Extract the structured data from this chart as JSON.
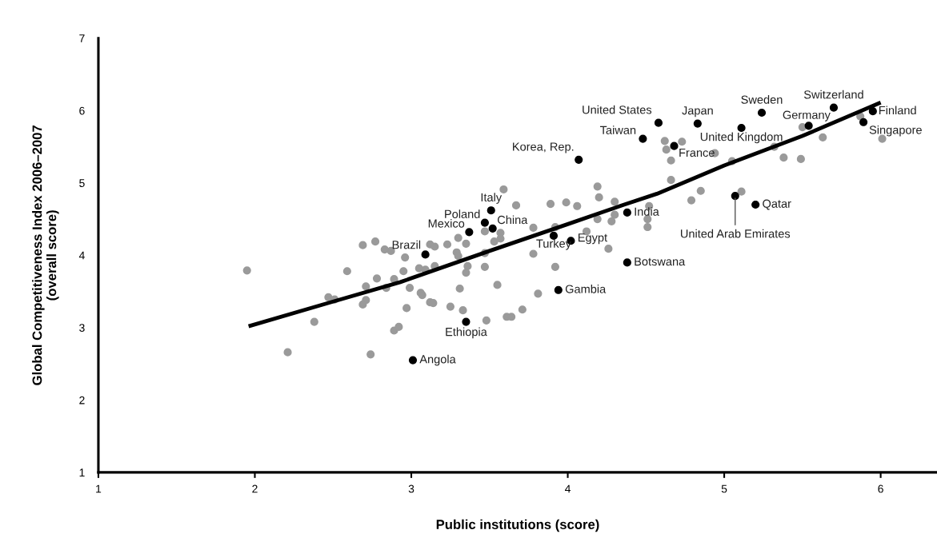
{
  "chart_data": {
    "type": "scatter",
    "xlabel": "Public institutions (score)",
    "ylabel": "Global Competitiveness Index 2006–2007\n(overall score)",
    "xlim": [
      1,
      6.36
    ],
    "ylim": [
      1,
      7
    ],
    "xticks": [
      1,
      2,
      3,
      4,
      5,
      6
    ],
    "yticks": [
      1,
      2,
      3,
      4,
      5,
      6,
      7
    ],
    "grid": false,
    "legend": false,
    "series": [
      {
        "marker": "circle",
        "color": "#9a9a9a",
        "x": [
          1.95,
          2.69,
          2.77,
          2.83,
          2.87,
          2.96,
          3.12,
          3.15,
          3.23,
          3.29,
          3.3,
          3.35,
          2.59,
          2.78,
          2.71,
          2.89,
          2.95,
          3.05,
          3.09,
          3.15,
          3.36,
          3.35,
          3.47,
          2.84,
          2.99,
          3.06,
          3.07,
          3.31,
          2.47,
          2.51,
          2.71,
          2.69,
          3.12,
          3.14,
          2.97,
          3.25,
          3.33,
          2.38,
          2.89,
          2.92,
          3.48,
          2.21,
          2.74,
          3.59,
          3.67,
          3.89,
          3.99,
          4.06,
          4.19,
          4.2,
          4.3,
          4.52,
          3.78,
          3.92,
          4.12,
          4.19,
          4.28,
          4.3,
          4.51,
          4.51,
          3.47,
          3.57,
          3.53,
          3.57,
          3.3,
          3.47,
          3.78,
          4.26,
          3.92,
          3.55,
          3.81,
          3.71,
          3.61,
          3.64,
          4.62,
          4.73,
          4.63,
          4.66,
          4.94,
          5.05,
          4.66,
          4.85,
          4.79,
          5.11,
          5.32,
          5.38,
          5.49,
          5.5,
          5.63,
          5.87,
          6.01
        ],
        "values": [
          3.79,
          4.14,
          4.19,
          4.08,
          4.06,
          3.97,
          4.15,
          4.12,
          4.15,
          4.04,
          3.99,
          4.16,
          3.78,
          3.68,
          3.57,
          3.67,
          3.78,
          3.82,
          3.8,
          3.85,
          3.85,
          3.76,
          3.84,
          3.55,
          3.55,
          3.48,
          3.45,
          3.54,
          3.42,
          3.39,
          3.38,
          3.32,
          3.35,
          3.34,
          3.27,
          3.29,
          3.24,
          3.08,
          2.96,
          3.01,
          3.1,
          2.66,
          2.63,
          4.91,
          4.69,
          4.71,
          4.73,
          4.68,
          4.95,
          4.8,
          4.74,
          4.68,
          4.38,
          4.39,
          4.33,
          4.5,
          4.47,
          4.56,
          4.5,
          4.39,
          4.33,
          4.31,
          4.19,
          4.23,
          4.24,
          4.03,
          4.02,
          4.09,
          3.84,
          3.59,
          3.47,
          3.25,
          3.15,
          3.15,
          5.58,
          5.57,
          5.46,
          5.31,
          5.41,
          5.3,
          5.04,
          4.89,
          4.76,
          4.88,
          5.5,
          5.35,
          5.33,
          5.77,
          5.63,
          5.92,
          5.61
        ]
      },
      {
        "marker": "circle",
        "color": "#000000",
        "x": [
          3.01,
          3.35,
          3.94,
          3.09,
          3.37,
          3.47,
          3.51,
          3.52,
          3.91,
          4.02,
          4.38,
          4.38,
          4.07,
          4.48,
          4.58,
          4.83,
          4.68,
          5.11,
          5.24,
          5.54,
          5.7,
          5.89,
          5.95,
          5.07,
          5.2
        ],
        "values": [
          2.55,
          3.08,
          3.52,
          4.01,
          4.32,
          4.45,
          4.62,
          4.37,
          4.27,
          4.2,
          3.9,
          4.59,
          5.32,
          5.61,
          5.83,
          5.82,
          5.51,
          5.76,
          5.97,
          5.79,
          6.04,
          5.84,
          5.99,
          4.82,
          4.7
        ]
      },
      {
        "type": "line",
        "color": "#000000",
        "x": [
          1.96,
          2.5,
          2.93,
          3.5,
          4.0,
          4.36,
          4.57,
          5.0,
          5.5,
          6.0
        ],
        "values": [
          3.02,
          3.36,
          3.63,
          4.06,
          4.43,
          4.7,
          4.85,
          5.24,
          5.65,
          6.11
        ]
      }
    ],
    "annotations": [
      {
        "text": "Angola",
        "x": 3.01,
        "y": 2.55
      },
      {
        "text": "Ethiopia",
        "x": 3.35,
        "y": 3.08
      },
      {
        "text": "Gambia",
        "x": 3.94,
        "y": 3.52
      },
      {
        "text": "Brazil",
        "x": 3.09,
        "y": 4.01
      },
      {
        "text": "Mexico",
        "x": 3.37,
        "y": 4.32
      },
      {
        "text": "Poland",
        "x": 3.47,
        "y": 4.45
      },
      {
        "text": "Italy",
        "x": 3.51,
        "y": 4.62
      },
      {
        "text": "China",
        "x": 3.52,
        "y": 4.37
      },
      {
        "text": "Turkey",
        "x": 3.91,
        "y": 4.27
      },
      {
        "text": "Egypt",
        "x": 4.02,
        "y": 4.2
      },
      {
        "text": "Botswana",
        "x": 4.38,
        "y": 3.9
      },
      {
        "text": "India",
        "x": 4.38,
        "y": 4.59
      },
      {
        "text": "Korea, Rep.",
        "x": 4.07,
        "y": 5.32
      },
      {
        "text": "Taiwan",
        "x": 4.48,
        "y": 5.61
      },
      {
        "text": "United States",
        "x": 4.58,
        "y": 5.83
      },
      {
        "text": "Japan",
        "x": 4.83,
        "y": 5.82
      },
      {
        "text": "France",
        "x": 4.68,
        "y": 5.51
      },
      {
        "text": "United Kingdom",
        "x": 5.11,
        "y": 5.76
      },
      {
        "text": "Sweden",
        "x": 5.24,
        "y": 5.97
      },
      {
        "text": "Germany",
        "x": 5.54,
        "y": 5.79
      },
      {
        "text": "Switzerland",
        "x": 5.7,
        "y": 6.04
      },
      {
        "text": "Singapore",
        "x": 5.89,
        "y": 5.84
      },
      {
        "text": "Finland",
        "x": 5.95,
        "y": 5.99
      },
      {
        "text": "United Arab Emirates",
        "x": 5.07,
        "y": 4.82
      },
      {
        "text": "Qatar",
        "x": 5.2,
        "y": 4.7
      }
    ]
  }
}
